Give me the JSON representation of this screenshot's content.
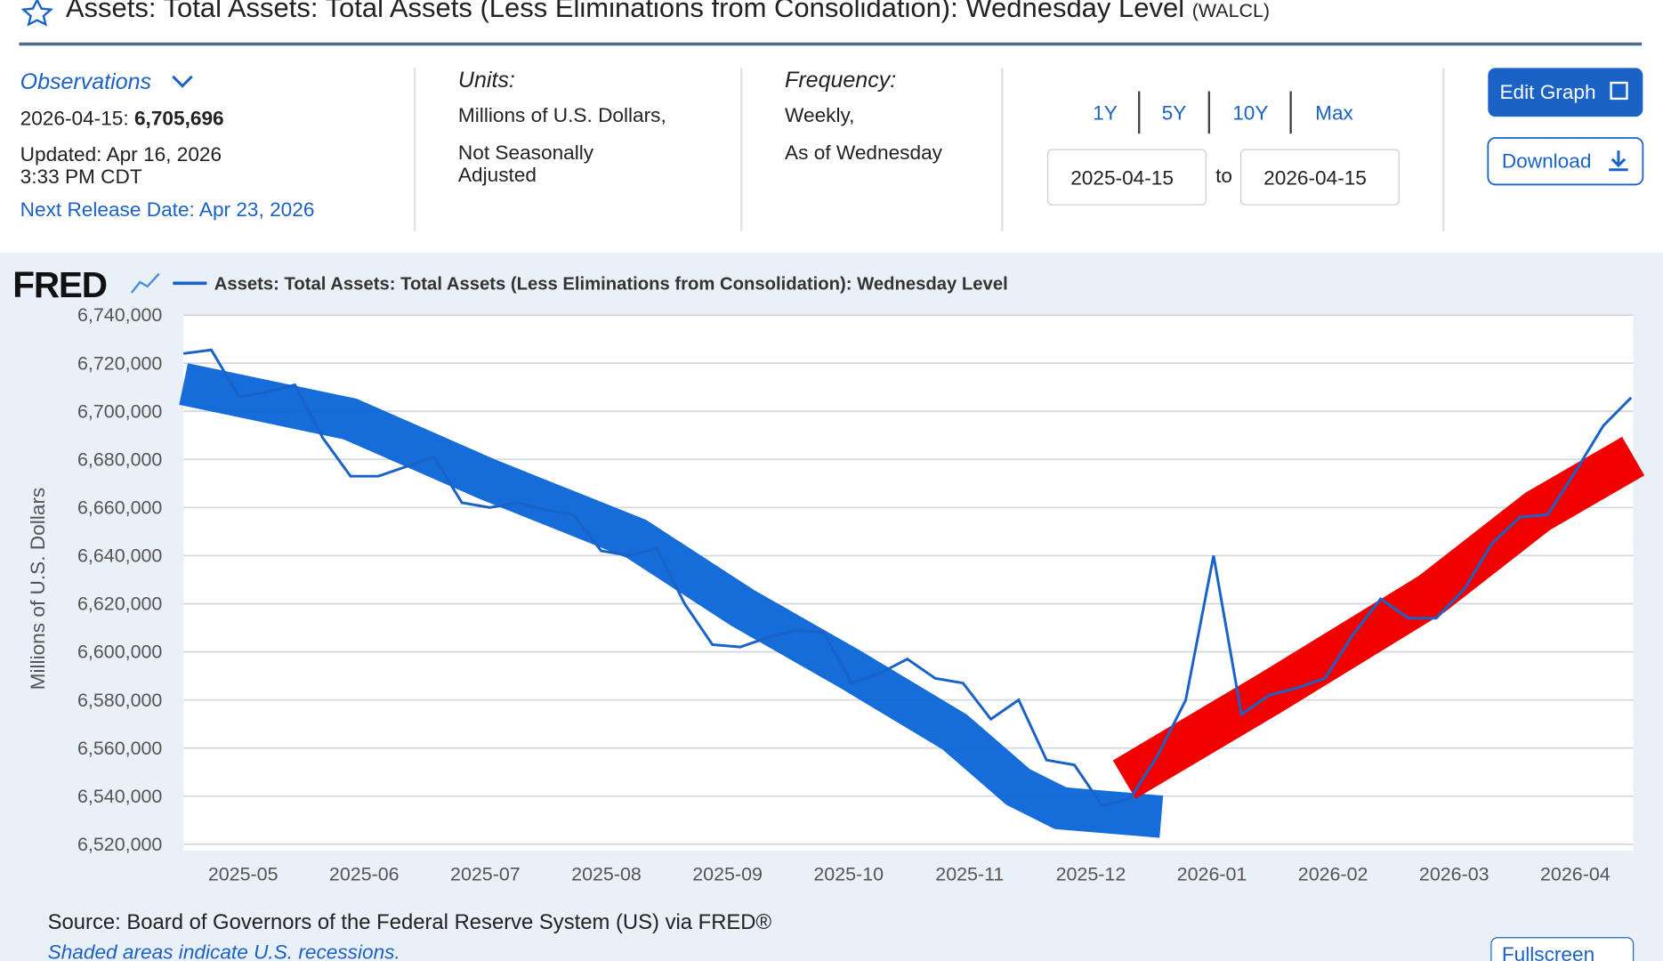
{
  "header": {
    "title": "Assets: Total Assets: Total Assets (Less Eliminations from Consolidation): Wednesday Level",
    "series_id": "(WALCL)"
  },
  "observations": {
    "label": "Observations",
    "date": "2026-04-15:",
    "value": "6,705,696",
    "updated": "Updated: Apr 16, 2026",
    "updated_time": "3:33 PM CDT",
    "next_release": "Next Release Date: Apr 23, 2026"
  },
  "units": {
    "label": "Units:",
    "lines": [
      "Millions of U.S. Dollars,",
      "Not Seasonally",
      "Adjusted"
    ]
  },
  "frequency": {
    "label": "Frequency:",
    "lines": [
      "Weekly,",
      "As of Wednesday"
    ]
  },
  "ranges": [
    "1Y",
    "5Y",
    "10Y",
    "Max"
  ],
  "date_from": "2025-04-15",
  "date_to_label": "to",
  "date_to": "2026-04-15",
  "buttons": {
    "edit": "Edit Graph",
    "download": "Download",
    "fullscreen": "Fullscreen"
  },
  "chart_data": {
    "type": "line",
    "brand": "FRED",
    "y_label": "Millions of U.S. Dollars",
    "series": [
      {
        "name": "Assets: Total Assets: Total Assets (Less Eliminations from Consolidation): Wednesday Level",
        "color": "#1a62c5",
        "values": [
          6724000,
          6725500,
          6706000,
          6708000,
          6711000,
          6689000,
          6673000,
          6673000,
          6677000,
          6681000,
          6662000,
          6660000,
          6662000,
          6659000,
          6657000,
          6642000,
          6640000,
          6643000,
          6620000,
          6603000,
          6602000,
          6606000,
          6609000,
          6608000,
          6587000,
          6591000,
          6597000,
          6589000,
          6587000,
          6572000,
          6580000,
          6555000,
          6553000,
          6536000,
          6539000,
          6557000,
          6580000,
          6640000,
          6574000,
          6582000,
          6585000,
          6589000,
          6607000,
          6622000,
          6614000,
          6614000,
          6626000,
          6645000,
          6656000,
          6657000,
          6675000,
          6694000,
          6705696
        ]
      }
    ],
    "ylim": [
      6520000,
      6740000
    ],
    "yticks": [
      {
        "value": 6520000,
        "label": "6,520,000"
      },
      {
        "value": 6540000,
        "label": "6,540,000"
      },
      {
        "value": 6560000,
        "label": "6,560,000"
      },
      {
        "value": 6580000,
        "label": "6,580,000"
      },
      {
        "value": 6600000,
        "label": "6,600,000"
      },
      {
        "value": 6620000,
        "label": "6,620,000"
      },
      {
        "value": 6640000,
        "label": "6,640,000"
      },
      {
        "value": 6660000,
        "label": "6,660,000"
      },
      {
        "value": 6680000,
        "label": "6,680,000"
      },
      {
        "value": 6700000,
        "label": "6,700,000"
      },
      {
        "value": 6720000,
        "label": "6,720,000"
      },
      {
        "value": 6740000,
        "label": "6,740,000"
      }
    ],
    "xticks": [
      "2025-05",
      "2025-06",
      "2025-07",
      "2025-08",
      "2025-09",
      "2025-10",
      "2025-11",
      "2025-12",
      "2026-01",
      "2026-02",
      "2026-03",
      "2026-04"
    ],
    "grid": true
  },
  "footer": {
    "source": "Source: Board of Governors of the Federal Reserve System (US) via FRED®",
    "recessions": "Shaded areas indicate U.S. recessions."
  }
}
